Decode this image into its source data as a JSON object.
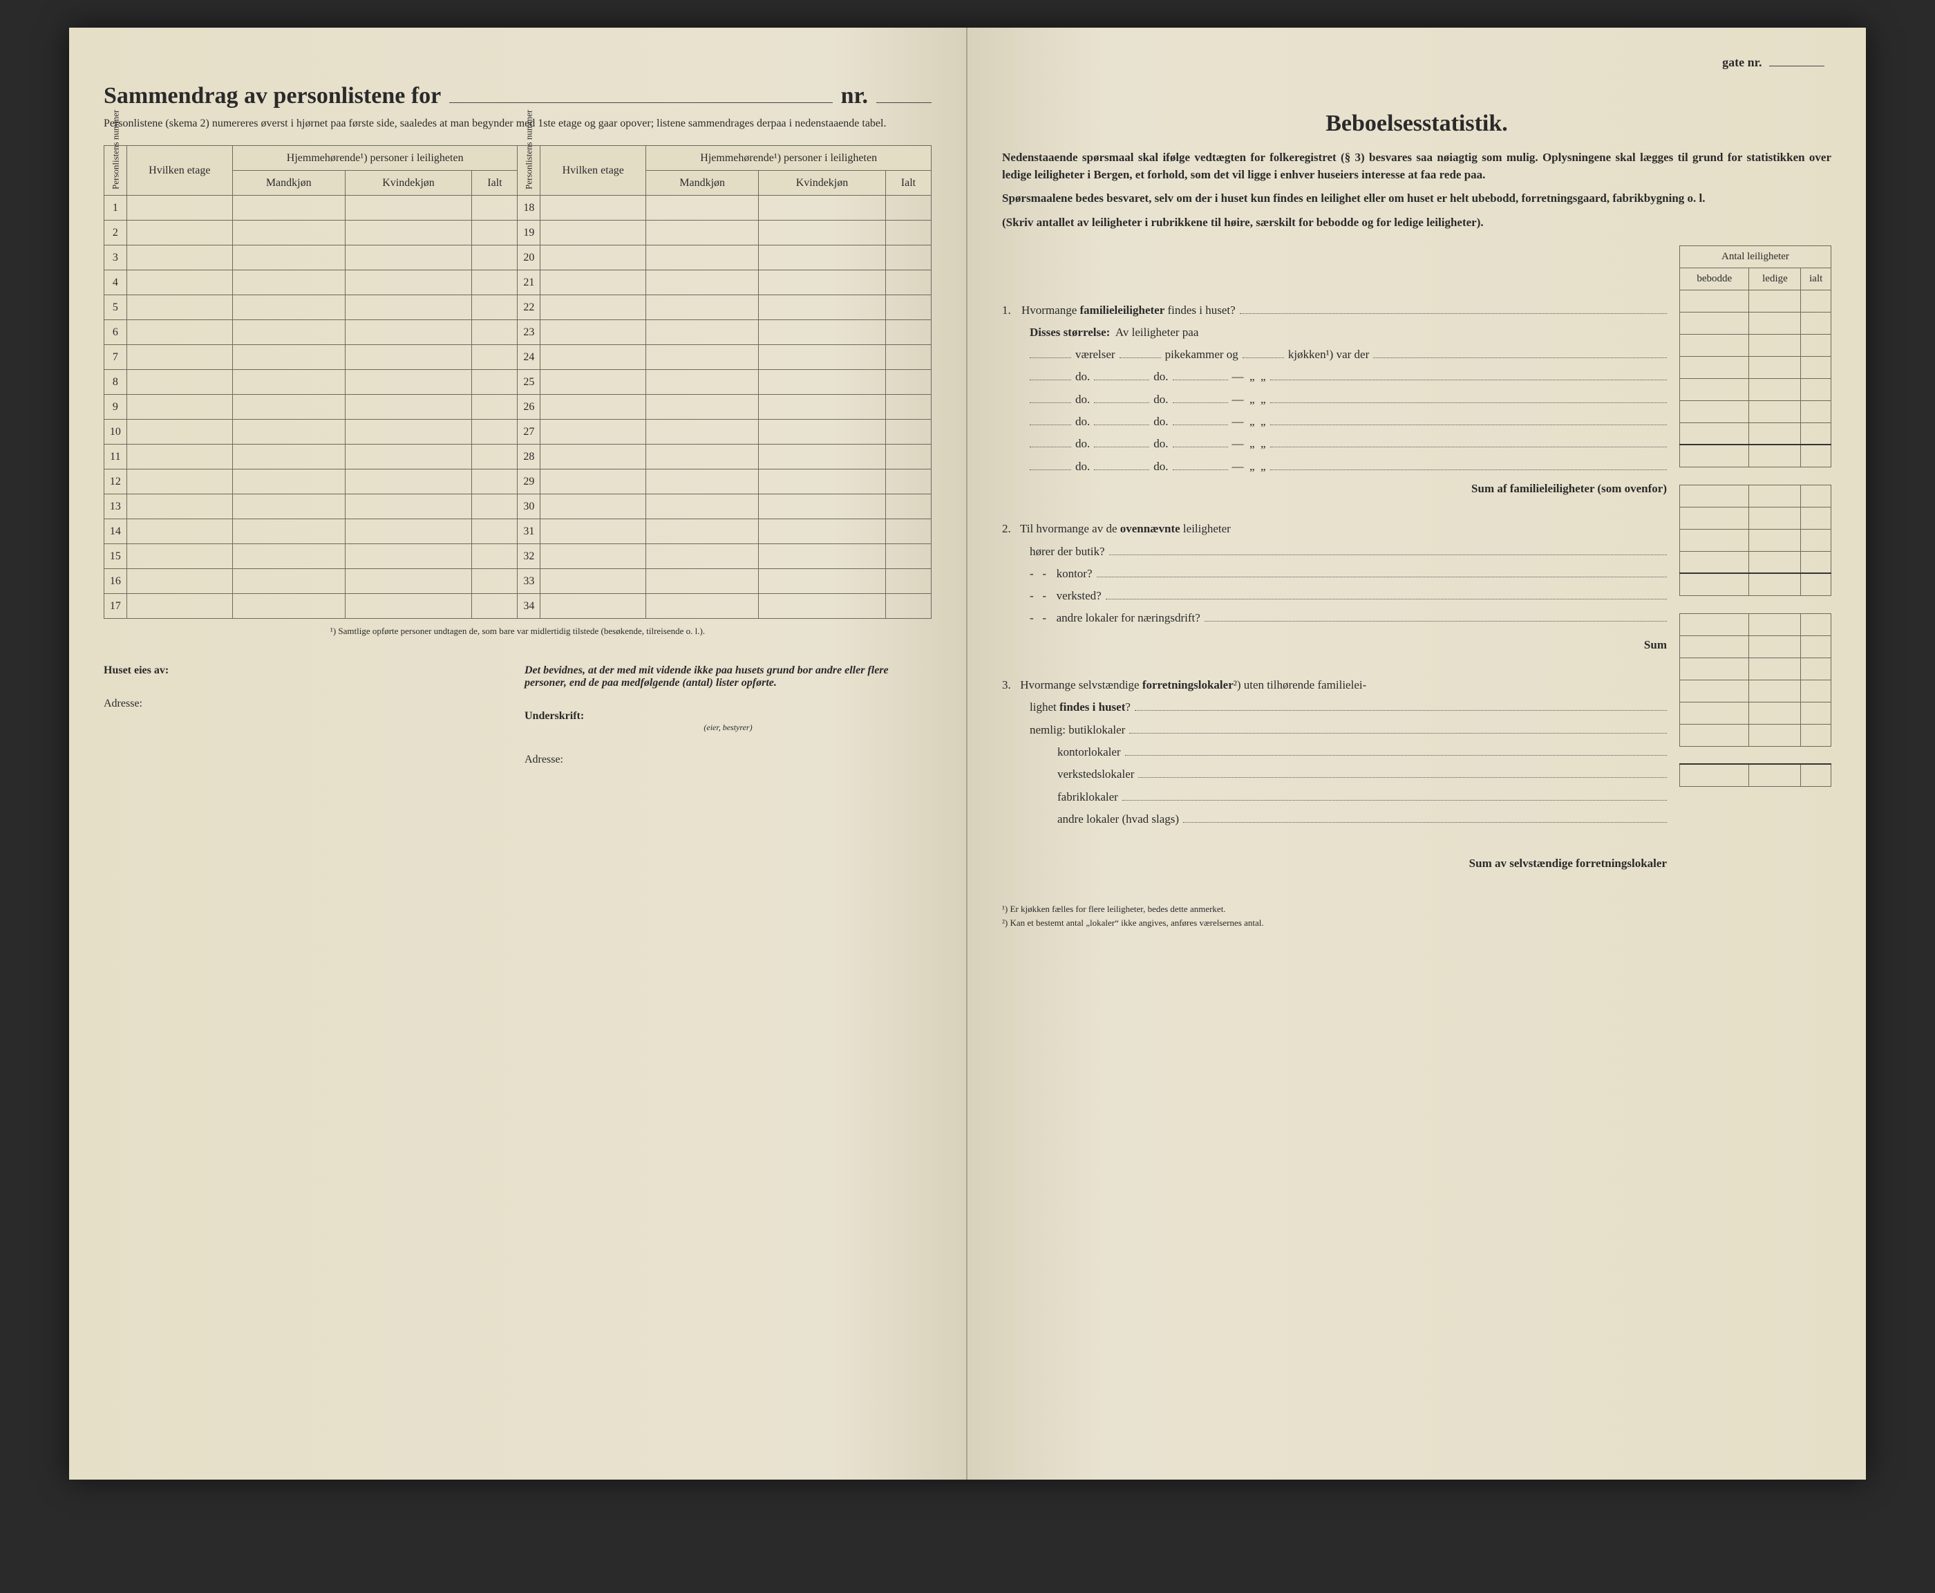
{
  "left": {
    "title_prefix": "Sammendrag av personlistene for",
    "title_suffix": "nr.",
    "subtitle": "Personlistene (skema 2) numereres øverst i hjørnet paa første side, saaledes at man begynder med 1ste etage og gaar opover; listene sammendrages derpaa i nedenstaaende tabel.",
    "col_personlist": "Personlistens nummer",
    "col_etage": "Hvilken etage",
    "col_group": "Hjemmehørende¹) personer i leiligheten",
    "col_mand": "Mandkjøn",
    "col_kvinde": "Kvindekjøn",
    "col_ialt": "Ialt",
    "footnote": "¹) Samtlige opførte personer undtagen de, som bare var midlertidig tilstede (besøkende, tilreisende o. l.).",
    "owner_label": "Huset eies av:",
    "address_label": "Adresse:",
    "attest": "Det bevidnes, at der med mit vidende ikke paa husets grund bor andre eller flere personer, end de paa medfølgende (antal)            lister opførte.",
    "underskrift": "Underskrift:",
    "eier_note": "(eier, bestyrer)",
    "adresse2": "Adresse:",
    "rows_a": [
      1,
      2,
      3,
      4,
      5,
      6,
      7,
      8,
      9,
      10,
      11,
      12,
      13,
      14,
      15,
      16,
      17
    ],
    "rows_b": [
      18,
      19,
      20,
      21,
      22,
      23,
      24,
      25,
      26,
      27,
      28,
      29,
      30,
      31,
      32,
      33,
      34
    ]
  },
  "right": {
    "gate_label": "gate nr.",
    "title": "Beboelsesstatistik.",
    "intro1": "Nedenstaaende spørsmaal skal ifølge vedtægten for folkeregistret (§ 3) besvares saa nøiagtig som mulig. Oplysningene skal lægges til grund for statistikken over ledige leiligheter i Bergen, et forhold, som det vil ligge i enhver huseiers interesse at faa rede paa.",
    "intro2": "Spørsmaalene bedes besvaret, selv om der i huset kun findes en leilighet eller om huset er helt ubebodd, forretningsgaard, fabrikbygning o. l.",
    "intro3": "(Skriv antallet av leiligheter i rubrikkene til høire, særskilt for bebodde og for ledige leiligheter).",
    "count_header": "Antal leiligheter",
    "count_cols": [
      "bebodde",
      "ledige",
      "ialt"
    ],
    "q1": "Hvormange familieleiligheter findes i huset?",
    "q1_size": "Disses størrelse:  Av leiligheter paa",
    "q1_line": "værelser            pikekammer og            kjøkken¹) var der",
    "do": "do.",
    "q1_sum": "Sum af familieleiligheter (som ovenfor)",
    "q2": "Til hvormange av de ovennævnte leiligheter",
    "q2_a": "hører der butik?",
    "q2_b": "kontor?",
    "q2_c": "verksted?",
    "q2_d": "andre lokaler for næringsdrift?",
    "sum": "Sum",
    "q3": "Hvormange selvstændige forretningslokaler²) uten tilhørende familieleilighet findes i huset?",
    "q3_nemlig": "nemlig: butiklokaler",
    "q3_b": "kontorlokaler",
    "q3_c": "verkstedslokaler",
    "q3_d": "fabriklokaler",
    "q3_e": "andre lokaler (hvad slags)",
    "q3_sum": "Sum av selvstændige forretningslokaler",
    "fn1": "¹) Er kjøkken fælles for flere leiligheter, bedes dette anmerket.",
    "fn2": "²) Kan et bestemt antal „lokaler“ ikke angives, anføres værelsernes antal."
  },
  "colors": {
    "paper": "#e8e2d0",
    "ink": "#2a2a2a",
    "rule": "#6a6a5a"
  }
}
